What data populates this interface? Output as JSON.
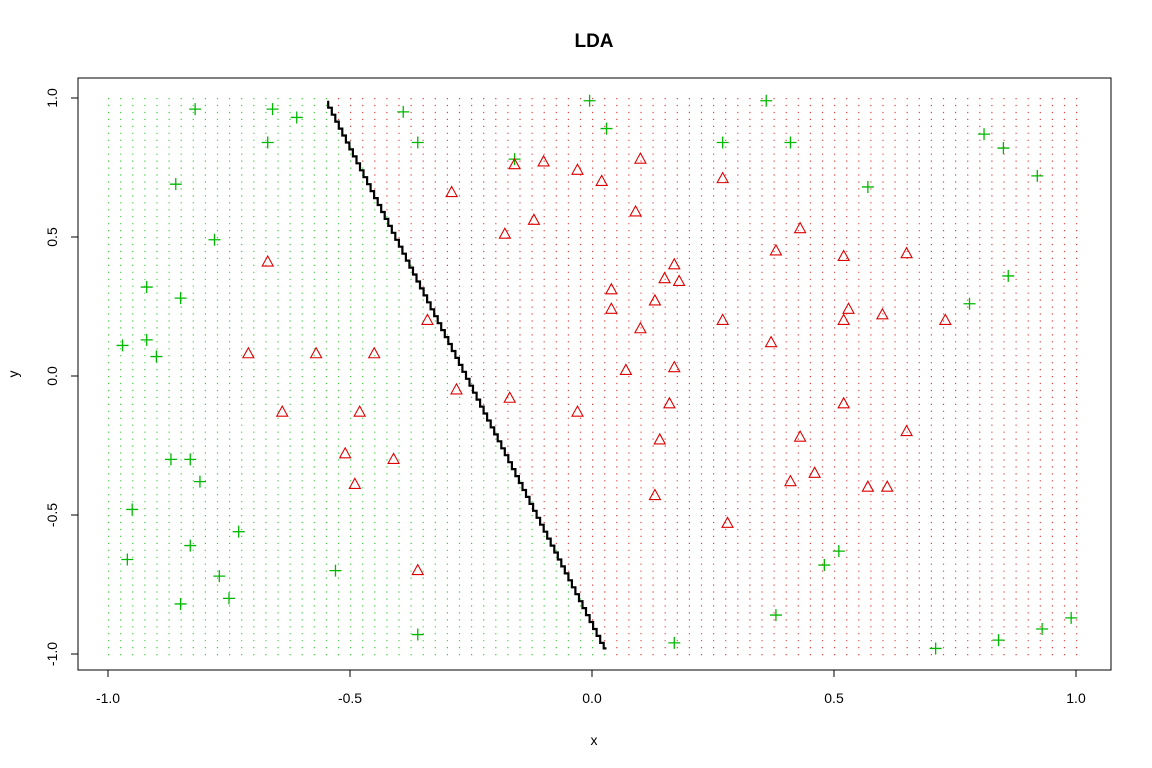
{
  "chart_data": {
    "type": "scatter",
    "title": "LDA",
    "xlabel": "x",
    "ylabel": "y",
    "xlim": [
      -1.0,
      1.0
    ],
    "ylim": [
      -1.0,
      1.0
    ],
    "x_ticks": [
      "-1.0",
      "-0.5",
      "0.0",
      "0.5",
      "1.0"
    ],
    "y_ticks": [
      "-1.0",
      "-0.5",
      "0.0",
      "0.5",
      "1.0"
    ],
    "grid": false,
    "legend": "none",
    "colors": {
      "class_plus": "#00B800",
      "class_triangle": "#DD0000",
      "boundary": "#000000"
    },
    "background_grid": {
      "description": "dotted prediction grid over [-1,1]x[-1,1]",
      "step": 0.025
    },
    "decision_boundary": {
      "x_at_y_top": -0.545,
      "x_at_y_bottom": 0.03,
      "y_top": 0.99,
      "y_bottom": -0.98
    },
    "series": [
      {
        "marker": "plus",
        "points": [
          [
            -0.82,
            0.96
          ],
          [
            -0.66,
            0.96
          ],
          [
            -0.61,
            0.93
          ],
          [
            -0.39,
            0.95
          ],
          [
            -0.36,
            0.84
          ],
          [
            -0.67,
            0.84
          ],
          [
            -0.86,
            0.69
          ],
          [
            -0.78,
            0.49
          ],
          [
            -0.92,
            0.32
          ],
          [
            -0.85,
            0.28
          ],
          [
            -0.92,
            0.13
          ],
          [
            -0.97,
            0.11
          ],
          [
            -0.9,
            0.07
          ],
          [
            -0.87,
            -0.3
          ],
          [
            -0.83,
            -0.3
          ],
          [
            -0.81,
            -0.38
          ],
          [
            -0.95,
            -0.48
          ],
          [
            -0.73,
            -0.56
          ],
          [
            -0.83,
            -0.61
          ],
          [
            -0.96,
            -0.66
          ],
          [
            -0.77,
            -0.72
          ],
          [
            -0.53,
            -0.7
          ],
          [
            -0.75,
            -0.8
          ],
          [
            -0.85,
            -0.82
          ],
          [
            -0.36,
            -0.93
          ],
          [
            -0.005,
            0.99
          ],
          [
            0.03,
            0.89
          ],
          [
            -0.16,
            0.78
          ],
          [
            0.36,
            0.99
          ],
          [
            0.27,
            0.84
          ],
          [
            0.41,
            0.84
          ],
          [
            0.57,
            0.68
          ],
          [
            0.81,
            0.87
          ],
          [
            0.85,
            0.82
          ],
          [
            0.92,
            0.72
          ],
          [
            0.86,
            0.36
          ],
          [
            0.78,
            0.26
          ],
          [
            0.51,
            -0.63
          ],
          [
            0.48,
            -0.68
          ],
          [
            0.38,
            -0.86
          ],
          [
            0.17,
            -0.96
          ],
          [
            0.71,
            -0.98
          ],
          [
            0.84,
            -0.95
          ],
          [
            0.93,
            -0.91
          ],
          [
            0.99,
            -0.87
          ]
        ]
      },
      {
        "marker": "triangle",
        "points": [
          [
            -0.29,
            0.66
          ],
          [
            -0.18,
            0.51
          ],
          [
            -0.16,
            0.76
          ],
          [
            -0.1,
            0.77
          ],
          [
            -0.12,
            0.56
          ],
          [
            -0.03,
            0.74
          ],
          [
            0.02,
            0.7
          ],
          [
            0.1,
            0.78
          ],
          [
            0.09,
            0.59
          ],
          [
            0.27,
            0.71
          ],
          [
            0.04,
            0.31
          ],
          [
            0.04,
            0.24
          ],
          [
            0.13,
            0.27
          ],
          [
            0.15,
            0.35
          ],
          [
            0.17,
            0.4
          ],
          [
            0.18,
            0.34
          ],
          [
            0.1,
            0.17
          ],
          [
            0.27,
            0.2
          ],
          [
            0.38,
            0.45
          ],
          [
            0.43,
            0.53
          ],
          [
            0.52,
            0.43
          ],
          [
            0.65,
            0.44
          ],
          [
            0.53,
            0.24
          ],
          [
            0.52,
            0.2
          ],
          [
            0.6,
            0.22
          ],
          [
            0.73,
            0.2
          ],
          [
            0.37,
            0.12
          ],
          [
            0.17,
            0.03
          ],
          [
            0.07,
            0.02
          ],
          [
            0.16,
            -0.1
          ],
          [
            0.14,
            -0.23
          ],
          [
            0.52,
            -0.1
          ],
          [
            0.43,
            -0.22
          ],
          [
            0.65,
            -0.2
          ],
          [
            0.46,
            -0.35
          ],
          [
            0.41,
            -0.38
          ],
          [
            0.57,
            -0.4
          ],
          [
            0.61,
            -0.4
          ],
          [
            0.13,
            -0.43
          ],
          [
            0.28,
            -0.53
          ],
          [
            -0.67,
            0.41
          ],
          [
            -0.71,
            0.08
          ],
          [
            -0.57,
            0.08
          ],
          [
            -0.45,
            0.08
          ],
          [
            -0.34,
            0.2
          ],
          [
            -0.28,
            -0.05
          ],
          [
            -0.17,
            -0.08
          ],
          [
            -0.64,
            -0.13
          ],
          [
            -0.48,
            -0.13
          ],
          [
            -0.03,
            -0.13
          ],
          [
            -0.51,
            -0.28
          ],
          [
            -0.41,
            -0.3
          ],
          [
            -0.49,
            -0.39
          ],
          [
            -0.36,
            -0.7
          ]
        ]
      }
    ]
  }
}
